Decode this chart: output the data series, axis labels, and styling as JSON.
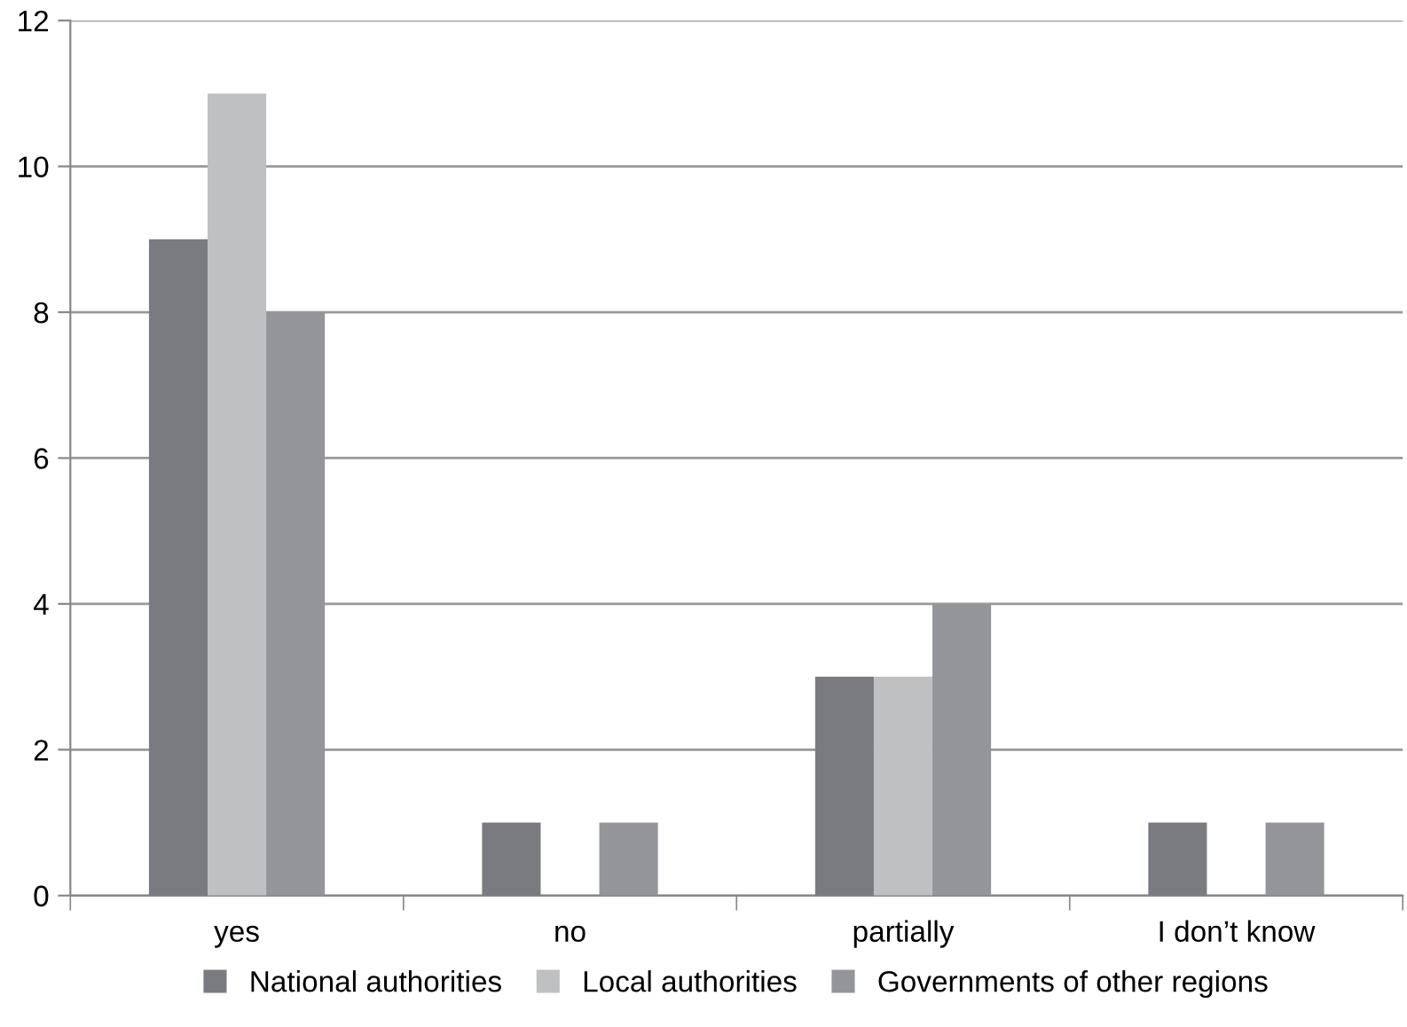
{
  "chart_data": {
    "type": "bar",
    "categories": [
      "yes",
      "no",
      "partially",
      "I don’t know"
    ],
    "series": [
      {
        "name": "National authorities",
        "color": "#7a7b7e",
        "values": [
          9,
          1,
          3,
          1
        ]
      },
      {
        "name": "Local authorities",
        "color": "#bfc0c2",
        "values": [
          11,
          0,
          3,
          0
        ]
      },
      {
        "name": "Governments of other regions",
        "color": "#949599",
        "values": [
          8,
          1,
          4,
          1
        ]
      }
    ],
    "ylim": [
      0,
      12
    ],
    "yticks": [
      0,
      2,
      4,
      6,
      8,
      10,
      12
    ],
    "grid": "y",
    "legend": "bottom"
  }
}
